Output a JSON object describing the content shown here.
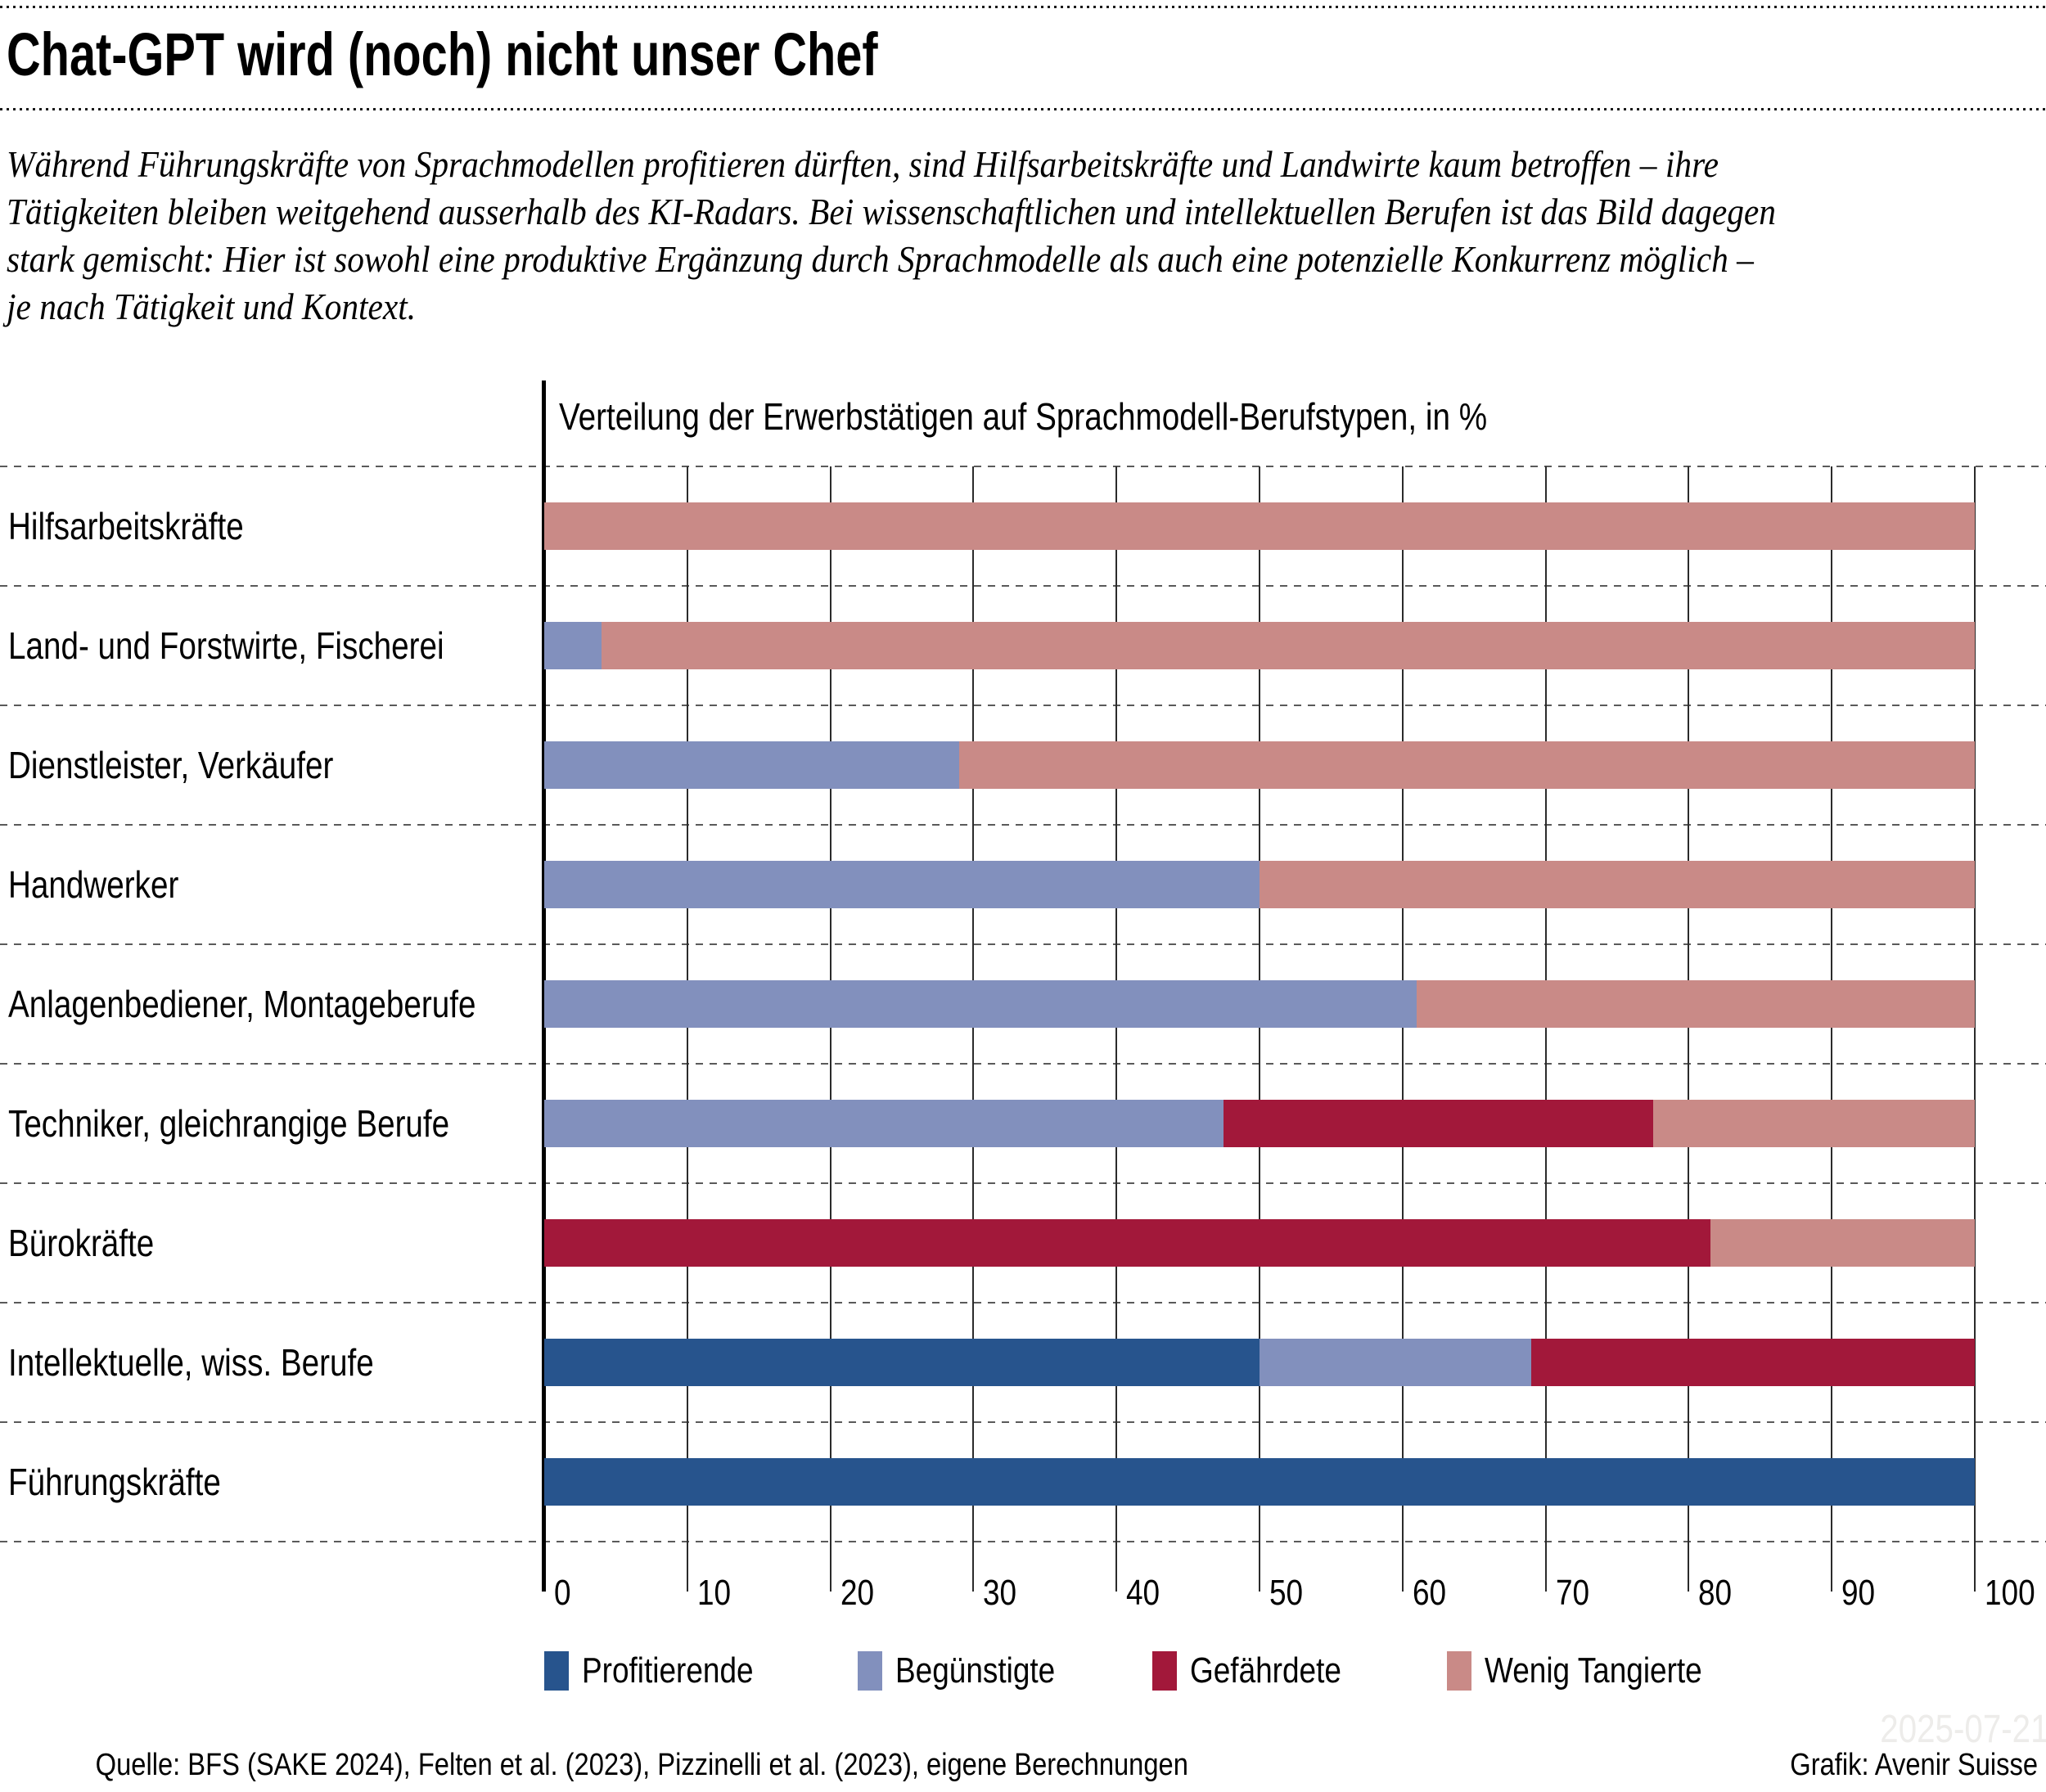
{
  "title": "Chat-GPT wird (noch) nicht unser Chef",
  "subtitle_lines": [
    "Während Führungskräfte von Sprachmodellen profitieren dürften, sind Hilfsarbeitskräfte und Landwirte kaum betroffen – ihre",
    "Tätigkeiten bleiben weitgehend ausserhalb des KI-Radars. Bei wissenschaftlichen und intellektuellen Berufen ist das Bild dagegen",
    "stark gemischt: Hier ist sowohl eine produktive Ergänzung durch Sprachmodelle als auch eine potenzielle Konkurrenz möglich –",
    "je nach Tätigkeit und Kontext."
  ],
  "chart_data": {
    "type": "bar",
    "orientation": "horizontal",
    "stacked": true,
    "title": "Verteilung der Erwerbstätigen auf Sprachmodell-Berufstypen, in %",
    "categories": [
      "Hilfsarbeitskräfte",
      "Land- und Forstwirte, Fischerei",
      "Dienstleister, Verkäufer",
      "Handwerker",
      "Anlagenbediener, Montageberufe",
      "Techniker, gleichrangige Berufe",
      "Bürokräfte",
      "Intellektuelle, wiss. Berufe",
      "Führungskräfte"
    ],
    "series": [
      {
        "name": "Profitierende",
        "color": "#27548D",
        "values": [
          0,
          0,
          0,
          0,
          0,
          0,
          0,
          50,
          100
        ]
      },
      {
        "name": "Begünstigte",
        "color": "#8290BD",
        "values": [
          0,
          4,
          29,
          50,
          61,
          47.5,
          0,
          19,
          0
        ]
      },
      {
        "name": "Gefährdete",
        "color": "#A2183A",
        "values": [
          0,
          0,
          0,
          0,
          0,
          30,
          81.5,
          31,
          0
        ]
      },
      {
        "name": "Wenig Tangierte",
        "color": "#C98A87",
        "values": [
          100,
          96,
          71,
          50,
          39,
          22.5,
          18.5,
          0,
          0
        ]
      }
    ],
    "xlim": [
      0,
      100
    ],
    "xticks": [
      0,
      10,
      20,
      30,
      40,
      50,
      60,
      70,
      80,
      90,
      100
    ],
    "grid": true,
    "legend_position": "bottom"
  },
  "footer": {
    "source": "Quelle: BFS (SAKE 2024), Felten et al. (2023), Pizzinelli et al. (2023), eigene Berechnungen",
    "credit": "Grafik: Avenir Suisse",
    "watermark": "2025-07-21"
  }
}
